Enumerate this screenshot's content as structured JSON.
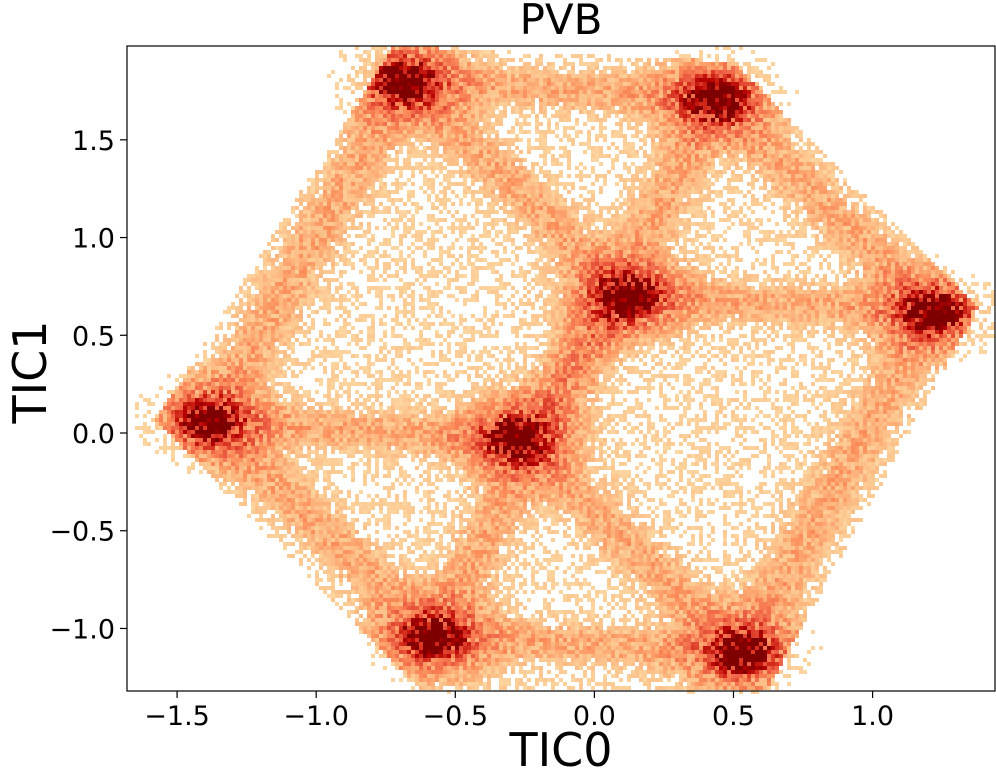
{
  "chart_data": {
    "type": "heatmap",
    "subtype": "2d-histogram",
    "title": "PVB",
    "xlabel": "TIC0",
    "ylabel": "TIC1",
    "xlim": [
      -1.68,
      1.44
    ],
    "ylim": [
      -1.32,
      1.98
    ],
    "xticks": [
      -1.5,
      -1.0,
      -0.5,
      0.0,
      0.5,
      1.0
    ],
    "xtick_labels": [
      "−1.5",
      "−1.0",
      "−0.5",
      "0.0",
      "0.5",
      "1.0"
    ],
    "yticks": [
      -1.0,
      -0.5,
      0.0,
      0.5,
      1.0,
      1.5
    ],
    "ytick_labels": [
      "−1.0",
      "−0.5",
      "0.0",
      "0.5",
      "1.0",
      "1.5"
    ],
    "colormap": "OrRd",
    "colormap_stops": [
      "#fff7ec",
      "#fee8c8",
      "#fdd49e",
      "#fdbb84",
      "#fc8d59",
      "#ef6548",
      "#d7301f",
      "#b30000",
      "#7f0000"
    ],
    "grid": false,
    "legend": "none",
    "density_peaks": [
      {
        "x": -0.68,
        "y": 1.8,
        "relative_density": 1.0
      },
      {
        "x": 0.44,
        "y": 1.71,
        "relative_density": 1.0
      },
      {
        "x": 0.12,
        "y": 0.7,
        "relative_density": 0.95
      },
      {
        "x": 1.22,
        "y": 0.62,
        "relative_density": 0.95
      },
      {
        "x": -1.38,
        "y": 0.06,
        "relative_density": 0.95
      },
      {
        "x": -0.28,
        "y": -0.03,
        "relative_density": 0.95
      },
      {
        "x": -0.58,
        "y": -1.04,
        "relative_density": 1.0
      },
      {
        "x": 0.53,
        "y": -1.12,
        "relative_density": 1.0
      }
    ],
    "connecting_paths": [
      [
        [
          -0.68,
          1.8
        ],
        [
          0.44,
          1.71
        ]
      ],
      [
        [
          0.44,
          1.71
        ],
        [
          1.22,
          0.62
        ]
      ],
      [
        [
          1.22,
          0.62
        ],
        [
          0.53,
          -1.12
        ]
      ],
      [
        [
          0.53,
          -1.12
        ],
        [
          -0.58,
          -1.04
        ]
      ],
      [
        [
          -0.58,
          -1.04
        ],
        [
          -1.38,
          0.06
        ]
      ],
      [
        [
          -1.38,
          0.06
        ],
        [
          -0.68,
          1.8
        ]
      ],
      [
        [
          0.12,
          0.7
        ],
        [
          1.22,
          0.62
        ]
      ],
      [
        [
          0.12,
          0.7
        ],
        [
          -0.68,
          1.8
        ]
      ],
      [
        [
          0.12,
          0.7
        ],
        [
          -0.28,
          -0.03
        ]
      ],
      [
        [
          -0.28,
          -0.03
        ],
        [
          -1.38,
          0.06
        ]
      ],
      [
        [
          -0.28,
          -0.03
        ],
        [
          0.53,
          -1.12
        ]
      ],
      [
        [
          -0.58,
          -1.04
        ],
        [
          0.44,
          1.71
        ]
      ]
    ]
  }
}
